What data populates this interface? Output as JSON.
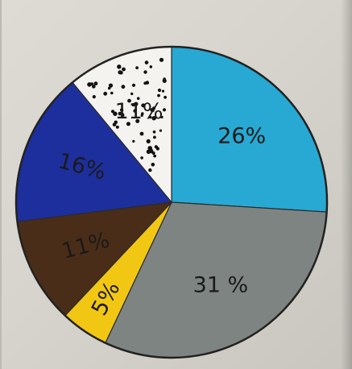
{
  "chart_data": {
    "type": "pie",
    "title": "",
    "slices": [
      {
        "label": "26%",
        "value": 26,
        "color": "#27a9d3",
        "pattern": "solid"
      },
      {
        "label": "31%",
        "value": 31,
        "color": "#7e8482",
        "pattern": "solid"
      },
      {
        "label": "5%",
        "value": 5,
        "color": "#f2c714",
        "pattern": "solid"
      },
      {
        "label": "11%",
        "value": 11,
        "color": "#4a2d18",
        "pattern": "solid"
      },
      {
        "label": "16%",
        "value": 16,
        "color": "#1d2f9c",
        "pattern": "solid"
      },
      {
        "label": "11%",
        "value": 11,
        "color": "#f4f3ef",
        "pattern": "dots"
      }
    ],
    "displayed_labels": [
      "26%",
      "31 %",
      "5%",
      "11%",
      "16%",
      "11%"
    ],
    "start_angle_deg": 0,
    "direction": "clockwise",
    "outline_color": "#222222",
    "label_color": "#1a1a1a"
  }
}
